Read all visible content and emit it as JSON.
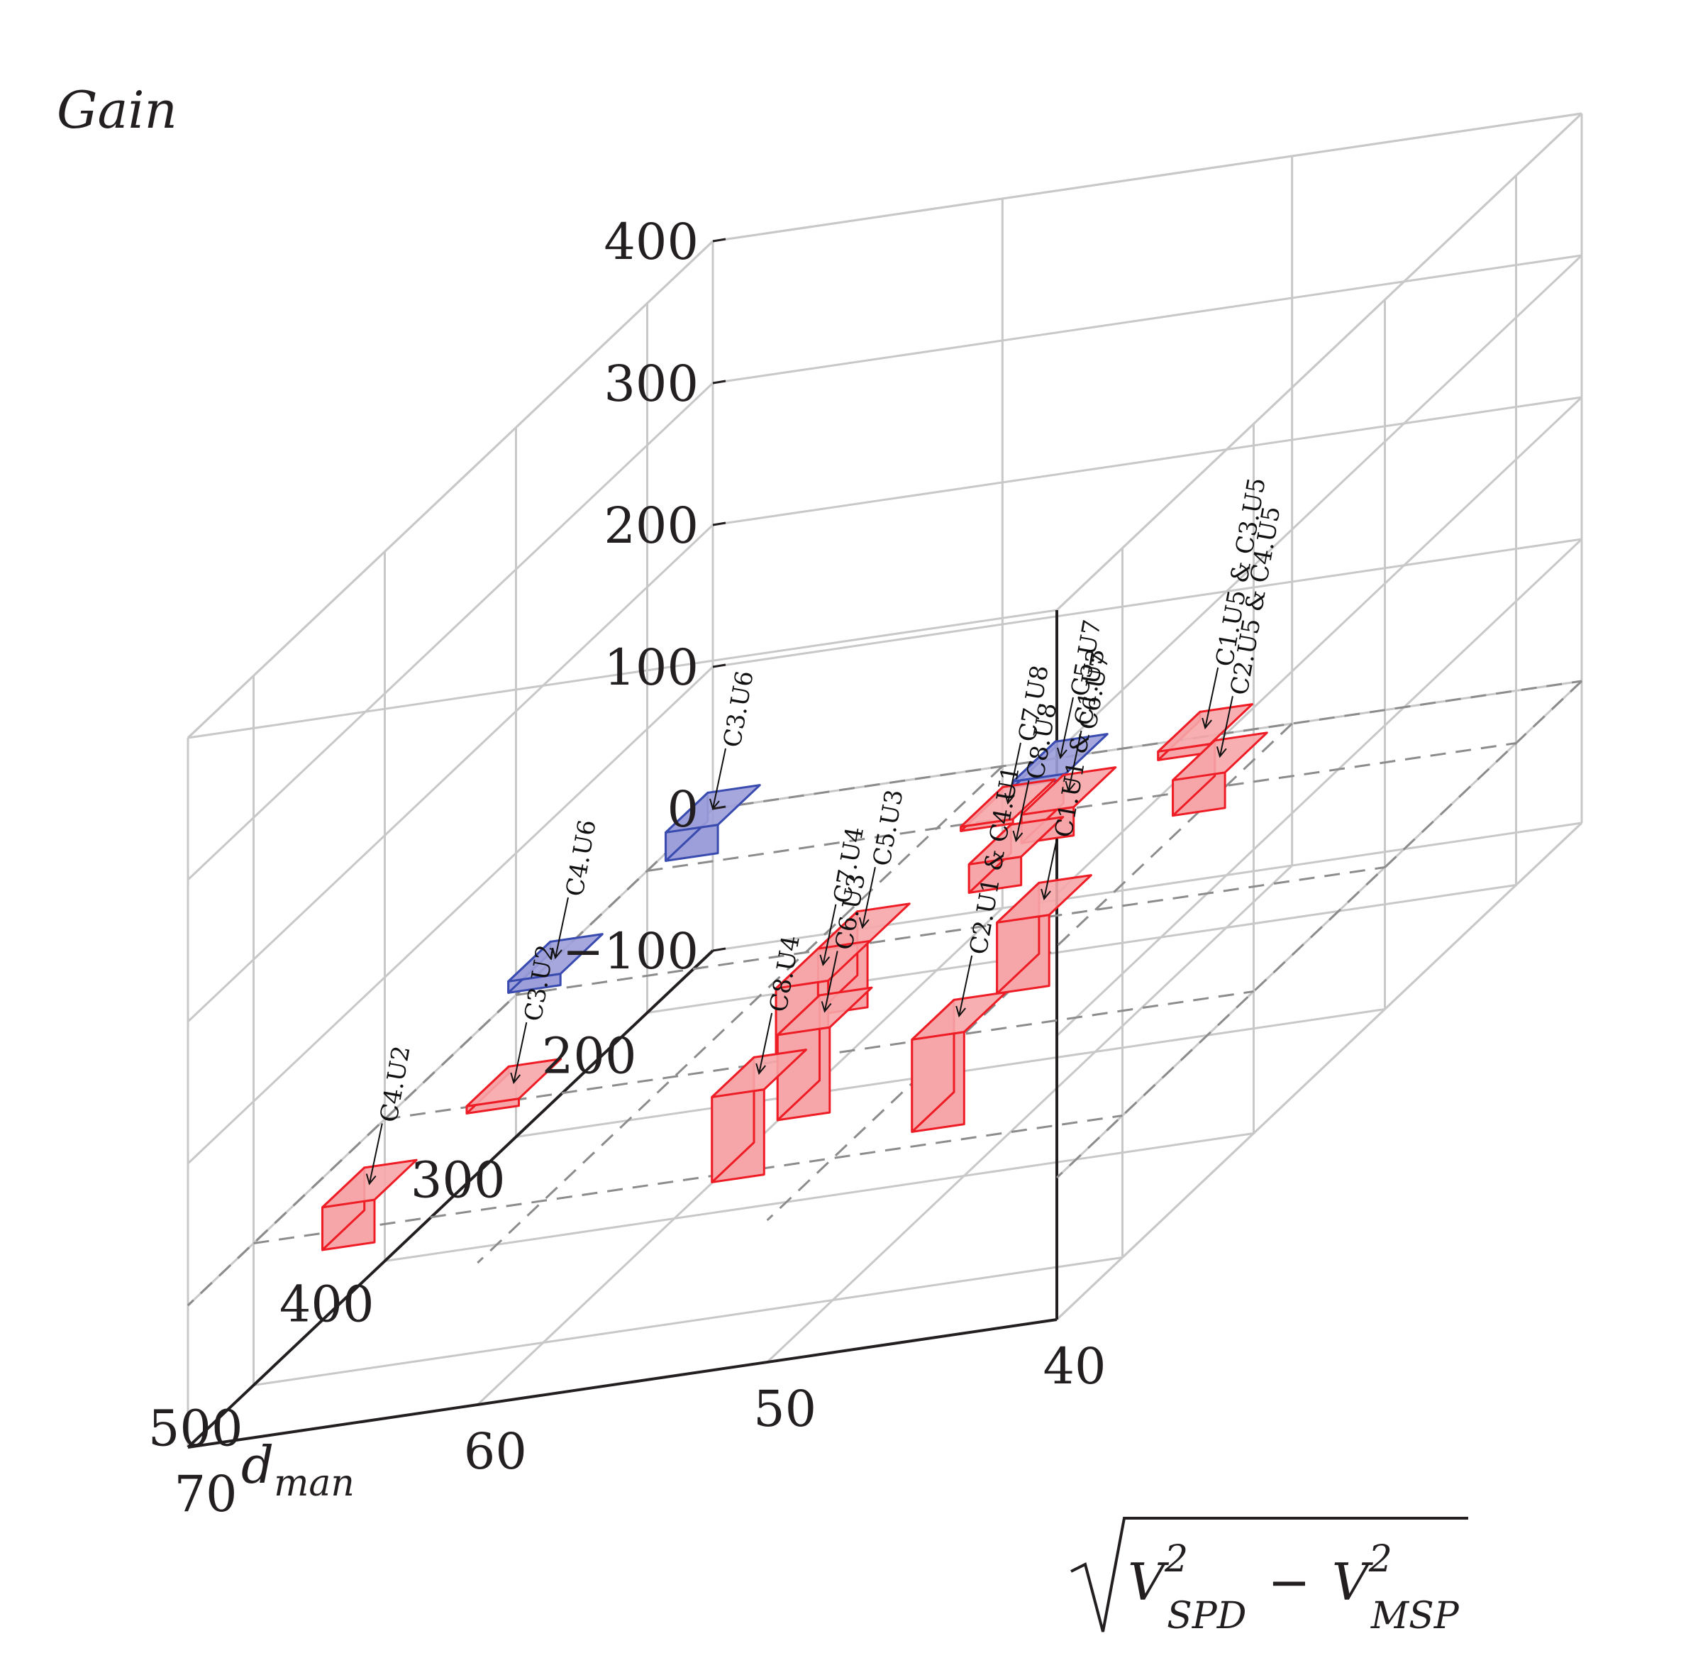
{
  "chart_data": {
    "type": "bar3d",
    "title": "",
    "zlabel": "Gain",
    "ylabel_base": "d",
    "ylabel_sub": "man",
    "xlabel_sqrt": "V",
    "xlabel_sup": "2",
    "xlabel_sub1": "SPD",
    "xlabel_minus": "−",
    "xlabel_sub2": "MSP",
    "x_ticks": [
      "70",
      "60",
      "50",
      "40"
    ],
    "y_ticks": [
      "200",
      "300",
      "400",
      "500"
    ],
    "z_ticks": [
      "−100",
      "0",
      "100",
      "200",
      "300",
      "400"
    ],
    "xlim": [
      70,
      40
    ],
    "ylim": [
      150,
      550
    ],
    "zlim": [
      -100,
      400
    ],
    "grid": true,
    "colors": {
      "positive_fill": "#f6a6a8",
      "positive_edge": "#ee1c25",
      "negative_fill": "#9c9fd9",
      "negative_edge": "#3a4bb0",
      "grid": "#c8c8c8",
      "dashed": "#8c8c8c",
      "axis": "#231f20"
    },
    "bars": [
      {
        "label": "C3.U6",
        "x": 70,
        "y": 150,
        "gain": -20
      },
      {
        "label": "C4.U6",
        "x": 70,
        "y": 270,
        "gain": -8
      },
      {
        "label": "C3.U2",
        "x": 66,
        "y": 390,
        "gain": 5
      },
      {
        "label": "C4.U2",
        "x": 66,
        "y": 500,
        "gain": 30
      },
      {
        "label": "C5.U7",
        "x": 58,
        "y": 150,
        "gain": -4
      },
      {
        "label": "C7.U8",
        "x": 58,
        "y": 190,
        "gain": 3
      },
      {
        "label": "C1.U5 & C3.U5",
        "x": 53,
        "y": 150,
        "gain": 6
      },
      {
        "label": "C6.U7",
        "x": 55,
        "y": 210,
        "gain": 20
      },
      {
        "label": "C8.U8",
        "x": 55,
        "y": 250,
        "gain": 20
      },
      {
        "label": "C2.U5 & C4.U5",
        "x": 50,
        "y": 205,
        "gain": 25
      },
      {
        "label": "C5.U3",
        "x": 56,
        "y": 345,
        "gain": 45
      },
      {
        "label": "C7.U4",
        "x": 56,
        "y": 375,
        "gain": 45
      },
      {
        "label": "C1.U1 & C1.U3",
        "x": 49.5,
        "y": 350,
        "gain": 50
      },
      {
        "label": "C6.U3",
        "x": 53,
        "y": 440,
        "gain": 60
      },
      {
        "label": "C8.U4",
        "x": 53,
        "y": 490,
        "gain": 60
      },
      {
        "label": "C2.U1 & C4.U1",
        "x": 47,
        "y": 470,
        "gain": 65
      }
    ]
  }
}
